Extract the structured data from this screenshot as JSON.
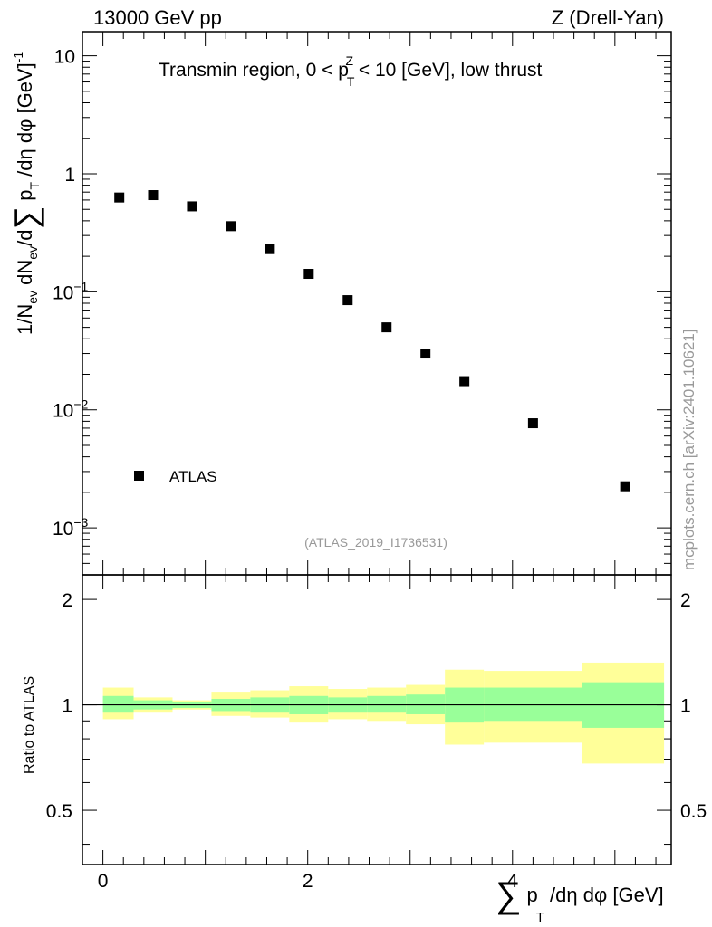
{
  "header": {
    "left": "13000 GeV pp",
    "right": "Z (Drell-Yan)"
  },
  "side_label": "mcplots.cern.ch [arXiv:2401.10621]",
  "colors": {
    "band_inner": "#99ff99",
    "band_outer": "#ffff99",
    "marker": "#000000",
    "watermark": "#999999"
  },
  "chart_data": [
    {
      "panel": "main",
      "type": "scatter",
      "title": "Transmin region, 0 < p_T^Z < 10 [GeV], low thrust",
      "title_parts": {
        "before": "Transmin region, 0 < p",
        "sup": "Z",
        "sub": "T",
        "after": " < 10 [GeV], low thrust"
      },
      "ylabel": "1/N_ev dN_ev/d∑p_T/dη dφ [GeV]^-1",
      "ylabel_parts": {
        "a": "1/N",
        "a_sub": "ev",
        "b": " dN",
        "b_sub": "ev",
        "c": "/d",
        "sum": "∑",
        "d": " p",
        "d_sub": "T",
        "e": " /dη dφ  [GeV]",
        "e_sup": "-1"
      },
      "yscale": "log",
      "ylim": [
        0.0004,
        16
      ],
      "xlim": [
        -0.2,
        5.55
      ],
      "ytick_labels": [
        {
          "value": 10,
          "base": "10",
          "exp": ""
        },
        {
          "value": 1,
          "base": "1",
          "exp": ""
        },
        {
          "value": 0.1,
          "base": "10",
          "exp": "−1"
        },
        {
          "value": 0.01,
          "base": "10",
          "exp": "−2"
        },
        {
          "value": 0.001,
          "base": "10",
          "exp": "−3"
        }
      ],
      "legend": {
        "label": "ATLAS",
        "position": "bottom-left"
      },
      "annotation": "(ATLAS_2019_I1736531)",
      "series": [
        {
          "name": "ATLAS",
          "x": [
            0.16,
            0.49,
            0.87,
            1.25,
            1.63,
            2.01,
            2.39,
            2.77,
            3.15,
            3.53,
            4.2,
            5.1
          ],
          "y": [
            0.63,
            0.66,
            0.53,
            0.36,
            0.23,
            0.142,
            0.085,
            0.05,
            0.03,
            0.0175,
            0.0077,
            0.00225
          ]
        }
      ]
    },
    {
      "panel": "ratio",
      "type": "area",
      "ylabel": "Ratio to ATLAS",
      "xlabel": "∑ p_T /dη dφ [GeV]",
      "xlabel_parts": {
        "sum": "∑",
        "p": "p",
        "sub": "T",
        "rest": " /dη dφ [GeV]"
      },
      "xlim": [
        -0.2,
        5.55
      ],
      "ylim": [
        0.35,
        2.35
      ],
      "yticks": [
        0.5,
        1,
        2
      ],
      "ytick_labels": [
        "0.5",
        "1",
        "2"
      ],
      "xticks": [
        0,
        2,
        4
      ],
      "xtick_labels": [
        "0",
        "2",
        "4"
      ],
      "reference_line": 1,
      "bins": [
        {
          "lo": 0.0,
          "hi": 0.3,
          "in_lo": 0.95,
          "in_hi": 1.06,
          "out_lo": 0.91,
          "out_hi": 1.12
        },
        {
          "lo": 0.3,
          "hi": 0.68,
          "in_lo": 0.97,
          "in_hi": 1.03,
          "out_lo": 0.95,
          "out_hi": 1.05
        },
        {
          "lo": 0.68,
          "hi": 1.06,
          "in_lo": 0.98,
          "in_hi": 1.02,
          "out_lo": 0.97,
          "out_hi": 1.03
        },
        {
          "lo": 1.06,
          "hi": 1.44,
          "in_lo": 0.96,
          "in_hi": 1.04,
          "out_lo": 0.93,
          "out_hi": 1.09
        },
        {
          "lo": 1.44,
          "hi": 1.82,
          "in_lo": 0.95,
          "in_hi": 1.05,
          "out_lo": 0.92,
          "out_hi": 1.1
        },
        {
          "lo": 1.82,
          "hi": 2.2,
          "in_lo": 0.94,
          "in_hi": 1.06,
          "out_lo": 0.89,
          "out_hi": 1.13
        },
        {
          "lo": 2.2,
          "hi": 2.58,
          "in_lo": 0.95,
          "in_hi": 1.05,
          "out_lo": 0.91,
          "out_hi": 1.11
        },
        {
          "lo": 2.58,
          "hi": 2.96,
          "in_lo": 0.95,
          "in_hi": 1.06,
          "out_lo": 0.9,
          "out_hi": 1.12
        },
        {
          "lo": 2.96,
          "hi": 3.34,
          "in_lo": 0.94,
          "in_hi": 1.07,
          "out_lo": 0.88,
          "out_hi": 1.14
        },
        {
          "lo": 3.34,
          "hi": 3.72,
          "in_lo": 0.89,
          "in_hi": 1.12,
          "out_lo": 0.77,
          "out_hi": 1.26
        },
        {
          "lo": 3.72,
          "hi": 4.68,
          "in_lo": 0.9,
          "in_hi": 1.12,
          "out_lo": 0.78,
          "out_hi": 1.25
        },
        {
          "lo": 4.68,
          "hi": 5.48,
          "in_lo": 0.86,
          "in_hi": 1.16,
          "out_lo": 0.68,
          "out_hi": 1.32
        }
      ]
    }
  ]
}
